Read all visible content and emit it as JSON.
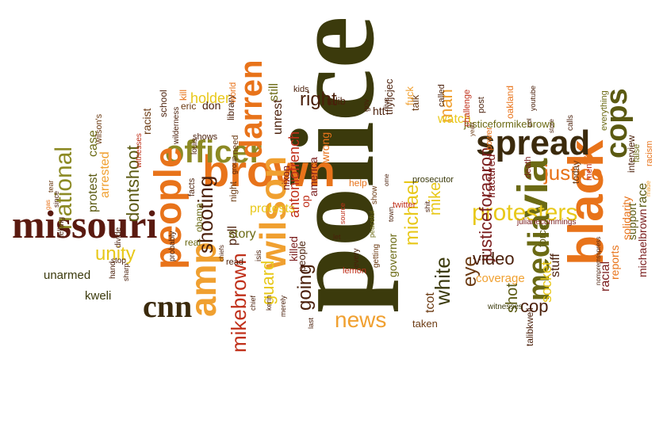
{
  "palette": {
    "dark_brown": "#4a1f0a",
    "maroon": "#7a1c1c",
    "olive": "#5b5a12",
    "olive_light": "#8c8a24",
    "orange": "#e8731a",
    "orange_light": "#f0a030",
    "yellow": "#e8c81a",
    "red": "#c0301a",
    "brown": "#6b3a12"
  },
  "words": [
    {
      "text": "police",
      "color": "#3b3a0c"
    },
    {
      "text": "black",
      "color": "#e8731a"
    },
    {
      "text": "spread",
      "color": "#3b2a0c"
    },
    {
      "text": "brown",
      "color": "#e8731a"
    },
    {
      "text": "missouri",
      "color": "#5a1a10"
    },
    {
      "text": "officer",
      "color": "#8c8a24"
    },
    {
      "text": "people",
      "color": "#e8731a"
    },
    {
      "text": "wilson",
      "color": "#f0a030"
    },
    {
      "text": "darren",
      "color": "#e8731a"
    },
    {
      "text": "via",
      "color": "#6b6a14"
    },
    {
      "text": "amp",
      "color": "#f0a030"
    },
    {
      "text": "cnn",
      "color": "#3b2a0c"
    },
    {
      "text": "national",
      "color": "#8c8a24"
    },
    {
      "text": "protesters",
      "color": "#e8c81a"
    },
    {
      "text": "media",
      "color": "#6b6a14"
    },
    {
      "text": "cops",
      "color": "#5b5a12"
    },
    {
      "text": "mikebrown",
      "color": "#c0301a"
    },
    {
      "text": "shooting",
      "color": "#4a1f0a"
    },
    {
      "text": "news",
      "color": "#f0a030"
    },
    {
      "text": "justice",
      "color": "#e8731a"
    },
    {
      "text": "michael",
      "color": "#e8c81a"
    },
    {
      "text": "white",
      "color": "#3b3a0c"
    },
    {
      "text": "unity",
      "color": "#e8c81a"
    },
    {
      "text": "going",
      "color": "#4a1f0a"
    },
    {
      "text": "guard",
      "color": "#e8c81a"
    },
    {
      "text": "dontshoot",
      "color": "#5b5a12"
    },
    {
      "text": "right",
      "color": "#4a1f0a"
    },
    {
      "text": "eye",
      "color": "#6b3a12"
    },
    {
      "text": "justiceforaaron",
      "color": "#7a1c1c"
    },
    {
      "text": "mike",
      "color": "#e8c81a"
    },
    {
      "text": "video",
      "color": "#4a1f0a"
    },
    {
      "text": "shot",
      "color": "#5b5a12"
    },
    {
      "text": "cop",
      "color": "#4a1f0a"
    },
    {
      "text": "holder",
      "color": "#e8c81a"
    },
    {
      "text": "antoniofrench",
      "color": "#c0301a"
    },
    {
      "text": "man",
      "color": "#f0a030"
    },
    {
      "text": "watch",
      "color": "#e8c81a"
    },
    {
      "text": "protest",
      "color": "#5b5a12"
    },
    {
      "text": "case",
      "color": "#6b6a14"
    },
    {
      "text": "arrested",
      "color": "#f0a030"
    },
    {
      "text": "unarmed",
      "color": "#3b3a0c"
    },
    {
      "text": "kweli",
      "color": "#3b3a0c"
    },
    {
      "text": "racist",
      "color": "#6b3a12"
    },
    {
      "text": "school",
      "color": "#4a1f0a"
    },
    {
      "text": "eric",
      "color": "#6b3a12"
    },
    {
      "text": "don",
      "color": "#4a1f0a"
    },
    {
      "text": "shows",
      "color": "#4a1f0a"
    },
    {
      "text": "poll",
      "color": "#4a1f0a"
    },
    {
      "text": "story",
      "color": "#6b6a14"
    },
    {
      "text": "nixon",
      "color": "#7a1c1c"
    },
    {
      "text": "unrest",
      "color": "#4a1f0a"
    },
    {
      "text": "still",
      "color": "#6b6a14"
    },
    {
      "text": "protests",
      "color": "#e8c81a"
    },
    {
      "text": "killed",
      "color": "#7a1c1c"
    },
    {
      "text": "america",
      "color": "#7a1c1c"
    },
    {
      "text": "wrong",
      "color": "#e8731a"
    },
    {
      "text": "op",
      "color": "#c0301a"
    },
    {
      "text": "governor",
      "color": "#6b6a14"
    },
    {
      "text": "people",
      "color": "#4a1f0a"
    },
    {
      "text": "tcot",
      "color": "#6b3a12"
    },
    {
      "text": "taken",
      "color": "#6b3a12"
    },
    {
      "text": "coverage",
      "color": "#f0a030"
    },
    {
      "text": "socket",
      "color": "#e8c81a"
    },
    {
      "text": "stuff",
      "color": "#4a1f0a"
    },
    {
      "text": "racial",
      "color": "#7a1c1c"
    },
    {
      "text": "reports",
      "color": "#e8731a"
    },
    {
      "text": "support",
      "color": "#5b5a12"
    },
    {
      "text": "race",
      "color": "#5b5a12"
    },
    {
      "text": "michaelbrown",
      "color": "#7a1c1c"
    },
    {
      "text": "solidarity",
      "color": "#e8731a"
    },
    {
      "text": "force",
      "color": "#5b5a12"
    },
    {
      "text": "justiceformikebrown",
      "color": "#6b6a14"
    },
    {
      "text": "fractured",
      "color": "#7a1c1c"
    },
    {
      "text": "htt",
      "color": "#4a1f0a"
    },
    {
      "text": "talib",
      "color": "#4a1f0a"
    },
    {
      "text": "talk",
      "color": "#6b3a12"
    },
    {
      "text": "fuck",
      "color": "#f0a030"
    },
    {
      "text": "kids",
      "color": "#4a1f0a"
    },
    {
      "text": "obama",
      "color": "#6b6a14"
    },
    {
      "text": "real",
      "color": "#6b6a14"
    },
    {
      "text": "facts",
      "color": "#4a1f0a"
    },
    {
      "text": "night",
      "color": "#6b3a12"
    },
    {
      "text": "need",
      "color": "#6b3a12"
    },
    {
      "text": "read",
      "color": "#4a1f0a"
    },
    {
      "text": "group",
      "color": "#4a1f0a"
    },
    {
      "text": "kill",
      "color": "#e8731a"
    },
    {
      "text": "tflyljcjec",
      "color": "#4a1f0a"
    },
    {
      "text": "prosecutor",
      "color": "#3b3a0c"
    },
    {
      "text": "twitter",
      "color": "#c0301a"
    },
    {
      "text": "show",
      "color": "#6b3a12"
    },
    {
      "text": "help",
      "color": "#e8731a"
    },
    {
      "text": "lemon",
      "color": "#c0301a"
    },
    {
      "text": "witnesses",
      "color": "#3b3a0c"
    },
    {
      "text": "talibkweli",
      "color": "#4a1f0a"
    },
    {
      "text": "interview",
      "color": "#4a1f0a"
    },
    {
      "text": "everything",
      "color": "#6b6a14"
    },
    {
      "text": "today",
      "color": "#6b3a12"
    },
    {
      "text": "post",
      "color": "#4a1f0a"
    },
    {
      "text": "oakland",
      "color": "#e8731a"
    },
    {
      "text": "power",
      "color": "#e8731a"
    },
    {
      "text": "challenge",
      "color": "#c0301a"
    },
    {
      "text": "called",
      "color": "#4a1f0a"
    },
    {
      "text": "live",
      "color": "#4a1f0a"
    },
    {
      "text": "gov",
      "color": "#4a1f0a"
    },
    {
      "text": "isis",
      "color": "#4a1f0a"
    },
    {
      "text": "every",
      "color": "#4a1f0a"
    },
    {
      "text": "getting",
      "color": "#6b3a12"
    },
    {
      "text": "peaceful",
      "color": "#6b6a14"
    },
    {
      "text": "death",
      "color": "#7a1c1c"
    },
    {
      "text": "calls",
      "color": "#4a1f0a"
    },
    {
      "text": "men",
      "color": "#c0301a"
    },
    {
      "text": "julianecummings",
      "color": "#7a1c1c"
    },
    {
      "text": "nomoremsspress",
      "color": "#4a1f0a"
    },
    {
      "text": "false",
      "color": "#6b6a14"
    },
    {
      "text": "racism",
      "color": "#e8731a"
    },
    {
      "text": "made",
      "color": "#f0a030"
    },
    {
      "text": "ice",
      "color": "#e8731a"
    },
    {
      "text": "kerin",
      "color": "#4a1f0a"
    },
    {
      "text": "chief",
      "color": "#4a1f0a"
    },
    {
      "text": "louis",
      "color": "#4a1f0a"
    },
    {
      "text": "probably",
      "color": "#4a1f0a"
    },
    {
      "text": "divide",
      "color": "#4a1f0a"
    },
    {
      "text": "stop",
      "color": "#4a1f0a"
    },
    {
      "text": "hand",
      "color": "#4a1f0a"
    },
    {
      "text": "telling",
      "color": "#4a1f0a"
    },
    {
      "text": "wilson's",
      "color": "#6b3a12"
    },
    {
      "text": "tear",
      "color": "#6b3a12"
    },
    {
      "text": "witnesses",
      "color": "#c0301a"
    },
    {
      "text": "store",
      "color": "#4a1f0a"
    },
    {
      "text": "yeah",
      "color": "#6b3a12"
    },
    {
      "text": "last",
      "color": "#4a1f0a"
    },
    {
      "text": "let",
      "color": "#4a1f0a"
    },
    {
      "text": "source",
      "color": "#c0301a"
    },
    {
      "text": "shit",
      "color": "#4a1f0a"
    },
    {
      "text": "town",
      "color": "#4a1f0a"
    },
    {
      "text": "library",
      "color": "#4a1f0a"
    },
    {
      "text": "world",
      "color": "#e8731a"
    },
    {
      "text": "gas",
      "color": "#e8731a"
    },
    {
      "text": "since",
      "color": "#4a1f0a"
    },
    {
      "text": "sharp",
      "color": "#4a1f0a"
    },
    {
      "text": "pol",
      "color": "#4a1f0a"
    },
    {
      "text": "wilderness",
      "color": "#4a1f0a"
    },
    {
      "text": "youtube",
      "color": "#4a1f0a"
    },
    {
      "text": "merely",
      "color": "#4a1f0a"
    },
    {
      "text": "ome",
      "color": "#4a1f0a"
    },
    {
      "text": "chiefs",
      "color": "#4a1f0a"
    }
  ]
}
